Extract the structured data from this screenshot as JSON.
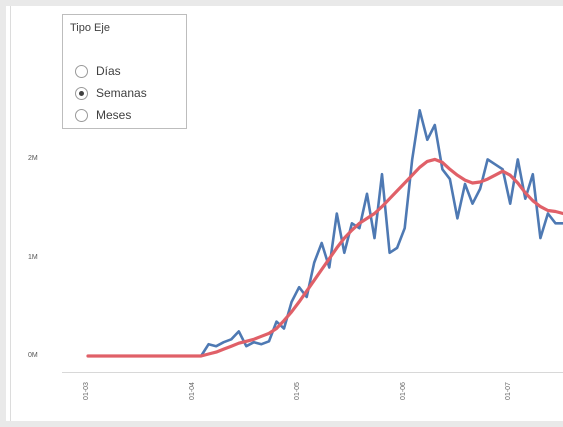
{
  "legend": {
    "title": "Tipo Eje",
    "options": [
      {
        "label": "Días",
        "checked": false
      },
      {
        "label": "Semanas",
        "checked": true
      },
      {
        "label": "Meses",
        "checked": false
      }
    ]
  },
  "colors": {
    "daily_line": "#4e79b3",
    "smooth_line": "#e06068",
    "axis": "#d8d8d8"
  },
  "chart_data": {
    "type": "line",
    "title": "",
    "xlabel": "",
    "ylabel": "",
    "ylim": [
      0,
      3.5
    ],
    "yticks": [
      {
        "value": 0,
        "label": "0M"
      },
      {
        "value": 1,
        "label": "1M"
      },
      {
        "value": 2,
        "label": "2M"
      }
    ],
    "xticks": [
      {
        "index": 0,
        "label": "01-03"
      },
      {
        "index": 14,
        "label": "01-04"
      },
      {
        "index": 28,
        "label": "01-05"
      },
      {
        "index": 42,
        "label": "01-06"
      },
      {
        "index": 56,
        "label": "01-07"
      }
    ],
    "x_count": 64,
    "series": [
      {
        "key": "daily",
        "values": [
          0,
          0,
          0,
          0,
          0,
          0,
          0,
          0,
          0,
          0,
          0,
          0,
          0,
          0,
          0,
          0,
          0.12,
          0.1,
          0.14,
          0.17,
          0.25,
          0.1,
          0.14,
          0.12,
          0.15,
          0.35,
          0.28,
          0.55,
          0.7,
          0.6,
          0.95,
          1.15,
          0.9,
          1.45,
          1.05,
          1.35,
          1.3,
          1.65,
          1.2,
          1.85,
          1.05,
          1.1,
          1.3,
          2.0,
          2.5,
          2.2,
          2.35,
          1.9,
          1.8,
          1.4,
          1.75,
          1.55,
          1.7,
          2.0,
          1.95,
          1.9,
          1.55,
          2.0,
          1.6,
          1.85,
          1.2,
          1.45,
          1.35,
          1.35
        ]
      },
      {
        "key": "smooth",
        "values": [
          0,
          0,
          0,
          0,
          0,
          0,
          0,
          0,
          0,
          0,
          0,
          0,
          0,
          0,
          0,
          0,
          0.02,
          0.04,
          0.07,
          0.1,
          0.13,
          0.15,
          0.17,
          0.2,
          0.23,
          0.28,
          0.36,
          0.45,
          0.55,
          0.66,
          0.77,
          0.88,
          0.99,
          1.1,
          1.2,
          1.28,
          1.35,
          1.4,
          1.45,
          1.52,
          1.6,
          1.68,
          1.76,
          1.84,
          1.92,
          1.98,
          2.0,
          1.97,
          1.9,
          1.84,
          1.79,
          1.76,
          1.77,
          1.8,
          1.84,
          1.88,
          1.84,
          1.76,
          1.66,
          1.58,
          1.52,
          1.48,
          1.47,
          1.45
        ]
      }
    ]
  }
}
